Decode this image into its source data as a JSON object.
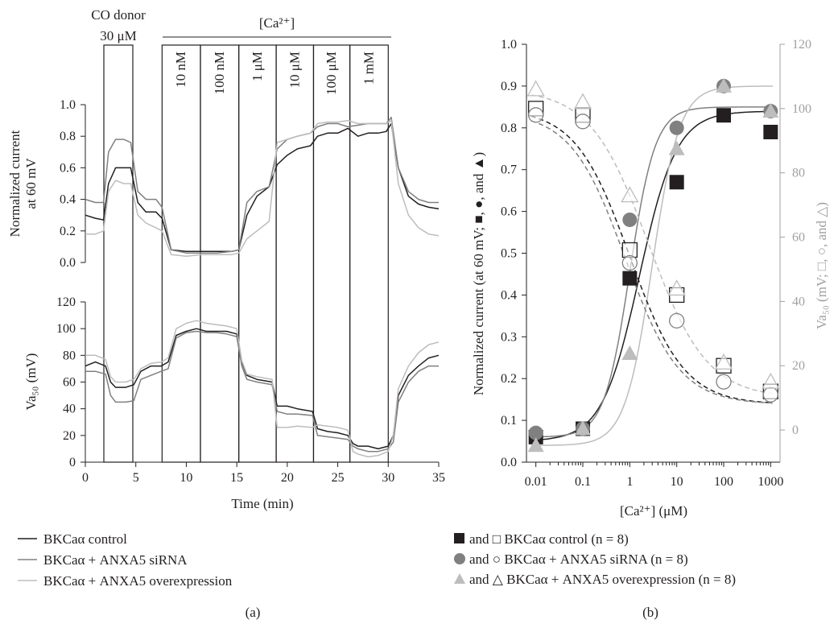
{
  "colors": {
    "control": "#231f20",
    "sirna": "#808080",
    "overexpression": "#bdbdbd",
    "right_axis": "#a0a0a0"
  },
  "panel_a": {
    "label": "(a)",
    "co_donor_line1": "CO donor",
    "co_donor_line2": "30 μM",
    "ca_label": "[Ca²⁺]",
    "concentrations": [
      "10 nM",
      "100 nM",
      "1 μM",
      "10 μM",
      "100 μM",
      "1 mM"
    ],
    "top_ylabel_line1": "Normalized current",
    "top_ylabel_line2": "at 60 mV",
    "bottom_ylabel": "Va₅₀ (mV)",
    "xlabel": "Time (min)",
    "x_ticks": [
      "0",
      "5",
      "10",
      "15",
      "20",
      "25",
      "30",
      "35"
    ],
    "top_y_ticks": [
      "0.0",
      "0.2",
      "0.4",
      "0.6",
      "0.8",
      "1.0"
    ],
    "bottom_y_ticks": [
      "0",
      "20",
      "40",
      "60",
      "80",
      "100",
      "120"
    ],
    "legend": [
      "BKCaα control",
      "BKCaα + ANXA5 siRNA",
      "BKCaα + ANXA5 overexpression"
    ]
  },
  "panel_b": {
    "label": "(b)",
    "xlabel": "[Ca²⁺] (μM)",
    "ylabel_left": "Normalized current (at 60 mV; ■, ●, and ▲)",
    "ylabel_right": "Va₅₀ (mV; □, ○, and △)",
    "x_ticks": [
      "0.01",
      "0.1",
      "1",
      "10",
      "100",
      "1000"
    ],
    "left_y_ticks": [
      "0.0",
      "0.1",
      "0.2",
      "0.3",
      "0.4",
      "0.5",
      "0.6",
      "0.7",
      "0.8",
      "0.9",
      "1.0"
    ],
    "right_y_ticks": [
      "0",
      "20",
      "40",
      "60",
      "80",
      "100",
      "120"
    ],
    "legend": [
      "and □ BKCaα control (n = 8)",
      "and ○ BKCaα + ANXA5 siRNA (n = 8)",
      "and △ BKCaα + ANXA5 overexpression (n = 8)"
    ]
  },
  "chart_data": [
    {
      "type": "line",
      "panel": "a-top",
      "ylabel": "Normalized current at 60 mV",
      "xlabel": "Time (min)",
      "xlim": [
        0,
        35
      ],
      "ylim": [
        0,
        1.0
      ],
      "series": [
        {
          "name": "BKCaα control",
          "x": [
            0,
            1,
            1.8,
            2.3,
            3,
            3.8,
            4.5,
            5.2,
            6,
            7,
            7.6,
            8.5,
            10,
            11.5,
            13,
            14.5,
            15.2,
            16,
            17,
            18.2,
            19,
            20,
            21,
            22.3,
            23,
            24,
            25,
            26,
            27,
            28,
            29,
            29.8,
            30.3,
            31,
            32,
            33,
            34,
            35
          ],
          "y": [
            0.3,
            0.28,
            0.27,
            0.5,
            0.6,
            0.6,
            0.6,
            0.38,
            0.32,
            0.32,
            0.28,
            0.08,
            0.07,
            0.07,
            0.07,
            0.07,
            0.08,
            0.3,
            0.42,
            0.48,
            0.62,
            0.68,
            0.72,
            0.74,
            0.8,
            0.82,
            0.82,
            0.85,
            0.8,
            0.82,
            0.82,
            0.83,
            0.88,
            0.6,
            0.42,
            0.37,
            0.35,
            0.34
          ]
        },
        {
          "name": "BKCaα + ANXA5 siRNA",
          "x": [
            0,
            1,
            1.8,
            2.3,
            3,
            3.8,
            4.5,
            5.2,
            6,
            7,
            7.6,
            8.5,
            10,
            11.5,
            13,
            14.5,
            15.2,
            16,
            17,
            18.2,
            19,
            20,
            21,
            22.3,
            23,
            24,
            25,
            26,
            27,
            28,
            29,
            29.8,
            30.3,
            31,
            32,
            33,
            34,
            35
          ],
          "y": [
            0.4,
            0.38,
            0.38,
            0.7,
            0.78,
            0.78,
            0.76,
            0.45,
            0.4,
            0.4,
            0.35,
            0.08,
            0.06,
            0.06,
            0.06,
            0.07,
            0.08,
            0.38,
            0.45,
            0.48,
            0.72,
            0.78,
            0.8,
            0.82,
            0.86,
            0.88,
            0.88,
            0.86,
            0.87,
            0.88,
            0.88,
            0.88,
            0.92,
            0.6,
            0.45,
            0.4,
            0.38,
            0.38
          ]
        },
        {
          "name": "BKCaα + ANXA5 overexpression",
          "x": [
            0,
            1,
            1.8,
            2.3,
            3,
            3.8,
            4.5,
            5.2,
            6,
            7,
            7.6,
            8.5,
            10,
            11.5,
            13,
            14.5,
            15.2,
            16,
            17,
            18.2,
            19,
            20,
            21,
            22.3,
            23,
            24,
            25,
            26,
            27,
            28,
            29,
            29.8,
            30.3,
            31,
            32,
            33,
            34,
            35
          ],
          "y": [
            0.18,
            0.18,
            0.2,
            0.45,
            0.52,
            0.5,
            0.5,
            0.3,
            0.25,
            0.22,
            0.2,
            0.05,
            0.04,
            0.05,
            0.05,
            0.05,
            0.06,
            0.15,
            0.2,
            0.26,
            0.76,
            0.78,
            0.8,
            0.82,
            0.88,
            0.89,
            0.89,
            0.9,
            0.88,
            0.88,
            0.88,
            0.88,
            0.9,
            0.5,
            0.3,
            0.22,
            0.18,
            0.17
          ]
        }
      ]
    },
    {
      "type": "line",
      "panel": "a-bottom",
      "ylabel": "Va50 (mV)",
      "xlabel": "Time (min)",
      "xlim": [
        0,
        35
      ],
      "ylim": [
        0,
        120
      ],
      "series": [
        {
          "name": "BKCaα control",
          "x": [
            0,
            1,
            2,
            2.5,
            3,
            4,
            4.8,
            5.5,
            6.5,
            7.5,
            8.2,
            9,
            10,
            11,
            12,
            13,
            14,
            15,
            15.5,
            16,
            17,
            18.5,
            19,
            20,
            21,
            22.5,
            23,
            24,
            25,
            26,
            26.5,
            27,
            28,
            29,
            30,
            30.5,
            31,
            32,
            33,
            34,
            35
          ],
          "y": [
            72,
            75,
            72,
            60,
            56,
            56,
            58,
            68,
            72,
            72,
            75,
            95,
            98,
            100,
            98,
            98,
            98,
            96,
            75,
            65,
            62,
            60,
            42,
            42,
            40,
            38,
            25,
            23,
            22,
            20,
            14,
            12,
            12,
            10,
            12,
            20,
            50,
            65,
            72,
            78,
            80
          ]
        },
        {
          "name": "BKCaα + ANXA5 siRNA",
          "x": [
            0,
            1,
            2,
            2.5,
            3,
            4,
            4.8,
            5.5,
            6.5,
            7.5,
            8.2,
            9,
            10,
            11,
            12,
            13,
            14,
            15,
            15.5,
            16,
            17,
            18.5,
            19,
            20,
            21,
            22.5,
            23,
            24,
            25,
            26,
            26.5,
            27,
            28,
            29,
            30,
            30.5,
            31,
            32,
            33,
            34,
            35
          ],
          "y": [
            68,
            68,
            66,
            50,
            45,
            45,
            46,
            62,
            65,
            68,
            70,
            93,
            97,
            98,
            97,
            97,
            96,
            94,
            72,
            62,
            60,
            58,
            38,
            36,
            36,
            35,
            20,
            19,
            18,
            17,
            12,
            10,
            8,
            8,
            10,
            15,
            45,
            60,
            68,
            72,
            72
          ]
        },
        {
          "name": "BKCaα + ANXA5 overexpression",
          "x": [
            0,
            1,
            2,
            2.5,
            3,
            4,
            4.8,
            5.5,
            6.5,
            7.5,
            8.2,
            9,
            10,
            11,
            12,
            13,
            14,
            15,
            15.5,
            16,
            17,
            18.5,
            19,
            20,
            21,
            22.5,
            23,
            24,
            25,
            26,
            26.5,
            27,
            28,
            29,
            30,
            30.5,
            31,
            32,
            33,
            34,
            35
          ],
          "y": [
            80,
            80,
            77,
            64,
            60,
            60,
            62,
            70,
            74,
            75,
            78,
            100,
            104,
            106,
            104,
            103,
            102,
            100,
            76,
            66,
            64,
            62,
            26,
            26,
            27,
            26,
            28,
            27,
            26,
            24,
            8,
            6,
            4,
            5,
            8,
            20,
            55,
            72,
            82,
            88,
            90
          ]
        }
      ]
    },
    {
      "type": "scatter",
      "panel": "b",
      "xlabel": "[Ca²⁺] (μM)",
      "ylabel": "Normalized current (at 60 mV)",
      "y2label": "Va50 (mV)",
      "x_scale": "log",
      "xlim": [
        0.01,
        1000
      ],
      "ylim": [
        0,
        1.0
      ],
      "y2lim": [
        -10,
        120
      ],
      "x": [
        0.01,
        0.1,
        1,
        10,
        100,
        1000
      ],
      "series": [
        {
          "name": "BKCaα control current",
          "marker": "filled-square",
          "axis": "left",
          "values": [
            0.06,
            0.08,
            0.44,
            0.67,
            0.83,
            0.79
          ]
        },
        {
          "name": "BKCaα + ANXA5 siRNA current",
          "marker": "filled-circle",
          "axis": "left",
          "values": [
            0.07,
            0.08,
            0.58,
            0.8,
            0.9,
            0.84
          ]
        },
        {
          "name": "BKCaα + ANXA5 overexpression current",
          "marker": "filled-triangle",
          "axis": "left",
          "values": [
            0.04,
            0.08,
            0.26,
            0.75,
            0.9,
            0.84
          ]
        },
        {
          "name": "BKCaα control Va50",
          "marker": "open-square",
          "axis": "right",
          "values": [
            100,
            98,
            56,
            42,
            20,
            12
          ]
        },
        {
          "name": "BKCaα + ANXA5 siRNA Va50",
          "marker": "open-circle",
          "axis": "right",
          "values": [
            98,
            96,
            52,
            34,
            15,
            11
          ]
        },
        {
          "name": "BKCaα + ANXA5 overexpression Va50",
          "marker": "open-triangle",
          "axis": "right",
          "values": [
            106,
            102,
            73,
            44,
            21,
            15
          ]
        }
      ]
    }
  ]
}
